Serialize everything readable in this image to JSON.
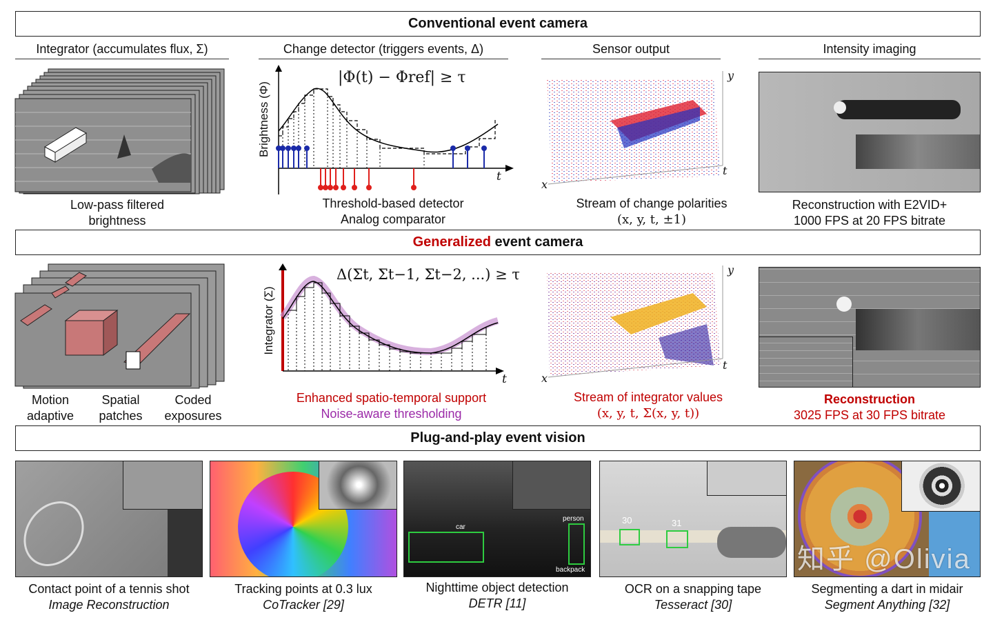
{
  "banners": {
    "conventional": "Conventional event camera",
    "generalized_highlight": "Generalized",
    "generalized_rest": " event camera",
    "plug": "Plug-and-play event vision"
  },
  "row1": {
    "integrator_title": "Integrator (accumulates flux, Σ)",
    "change_title": "Change detector (triggers events, Δ)",
    "sensor_title": "Sensor output",
    "intensity_title": "Intensity imaging",
    "integrator_caption": [
      "Low-pass filtered",
      "brightness"
    ],
    "change_caption": [
      "Threshold-based detector",
      "Analog comparator"
    ],
    "sensor_caption": [
      "Stream of change polarities",
      "(x, y, t, ±1)"
    ],
    "intensity_caption": [
      "Reconstruction with E2VID+",
      "1000 FPS at 20 FPS bitrate"
    ],
    "chart_equation": "|Φ(t) − Φref| ≥ τ",
    "chart_ylabel": "Brightness (Φ)",
    "chart_xlabel": "t",
    "axis_x": "x",
    "axis_y": "y",
    "axis_t": "t"
  },
  "row2": {
    "labels": [
      "Motion\nadaptive",
      "Spatial\npatches",
      "Coded\nexposures"
    ],
    "motion": [
      "Motion",
      "adaptive"
    ],
    "spatial": [
      "Spatial",
      "patches"
    ],
    "coded": [
      "Coded",
      "exposures"
    ],
    "chart_equation": "Δ(Σt, Σt−1, Σt−2, ...) ≥ τ",
    "chart_ylabel": "Integrator (Σ)",
    "chart_xlabel": "t",
    "change_caption": [
      "Enhanced spatio-temporal support",
      "Noise-aware thresholding"
    ],
    "sensor_caption": [
      "Stream of integrator values",
      "(x, y, t, Σ(x, y, t))"
    ],
    "recon_caption": [
      "Reconstruction",
      "3025 FPS at 30 FPS bitrate"
    ],
    "axis_x": "x",
    "axis_y": "y",
    "axis_t": "t"
  },
  "row3": [
    {
      "caption": "Contact point of a tennis shot",
      "method": "Image Reconstruction"
    },
    {
      "caption": "Tracking points at 0.3 lux",
      "method": "CoTracker [29]"
    },
    {
      "caption": "Nighttime object detection",
      "method": "DETR [11]",
      "labels": [
        "car",
        "person",
        "backpack"
      ]
    },
    {
      "caption": "OCR on a snapping tape",
      "method": "Tesseract [30]",
      "labels": [
        "30",
        "31"
      ]
    },
    {
      "caption": "Segmenting a dart in midair",
      "method": "Segment Anything [32]"
    }
  ],
  "watermark": "知乎 @Olivia",
  "colors": {
    "accent_red": "#c00000",
    "purple": "#9b2aa8",
    "blue_event": "#1a2aa8",
    "red_event": "#e0201c",
    "box_green": "#2ecc40"
  }
}
